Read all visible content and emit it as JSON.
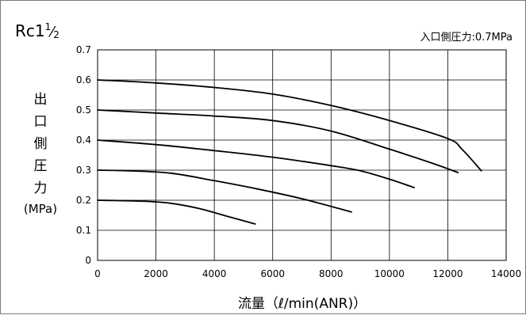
{
  "chart_data": {
    "type": "line",
    "title": "Rc1½",
    "title_main": "Rc1",
    "title_num": "1",
    "title_den": "2",
    "annotation": "入口側圧力:0.7MPa",
    "xlabel": "流量（ℓ/min(ANR)）",
    "ylabel_lines": [
      "出",
      "口",
      "側",
      "圧",
      "力",
      "(MPa)"
    ],
    "xlim": [
      0,
      14000
    ],
    "ylim": [
      0,
      0.7
    ],
    "xticks": [
      0,
      2000,
      4000,
      6000,
      8000,
      10000,
      12000,
      14000
    ],
    "yticks": [
      0,
      0.1,
      0.2,
      0.3,
      0.4,
      0.5,
      0.6,
      0.7
    ],
    "xtick_labels": [
      "0",
      "2000",
      "4000",
      "6000",
      "8000",
      "10000",
      "12000",
      "14000"
    ],
    "ytick_labels": [
      "0",
      "0.1",
      "0.2",
      "0.3",
      "0.4",
      "0.5",
      "0.6",
      "0.7"
    ],
    "grid": true,
    "line_color": "#000000",
    "series": [
      {
        "points": [
          [
            0,
            0.6
          ],
          [
            2000,
            0.59
          ],
          [
            4000,
            0.575
          ],
          [
            6000,
            0.553
          ],
          [
            8000,
            0.515
          ],
          [
            10000,
            0.465
          ],
          [
            12000,
            0.405
          ],
          [
            12500,
            0.368
          ],
          [
            13150,
            0.298
          ]
        ]
      },
      {
        "points": [
          [
            0,
            0.5
          ],
          [
            2000,
            0.49
          ],
          [
            4000,
            0.48
          ],
          [
            6000,
            0.465
          ],
          [
            8000,
            0.43
          ],
          [
            10000,
            0.37
          ],
          [
            11500,
            0.322
          ],
          [
            12350,
            0.292
          ]
        ]
      },
      {
        "points": [
          [
            0,
            0.4
          ],
          [
            2000,
            0.385
          ],
          [
            4000,
            0.365
          ],
          [
            6000,
            0.343
          ],
          [
            8000,
            0.315
          ],
          [
            9000,
            0.298
          ],
          [
            10000,
            0.27
          ],
          [
            10850,
            0.242
          ]
        ]
      },
      {
        "points": [
          [
            0,
            0.3
          ],
          [
            1000,
            0.298
          ],
          [
            2500,
            0.29
          ],
          [
            4000,
            0.265
          ],
          [
            5500,
            0.237
          ],
          [
            7000,
            0.205
          ],
          [
            8700,
            0.161
          ]
        ]
      },
      {
        "points": [
          [
            0,
            0.2
          ],
          [
            1500,
            0.197
          ],
          [
            2500,
            0.19
          ],
          [
            3500,
            0.172
          ],
          [
            4500,
            0.145
          ],
          [
            5400,
            0.121
          ]
        ]
      }
    ]
  }
}
